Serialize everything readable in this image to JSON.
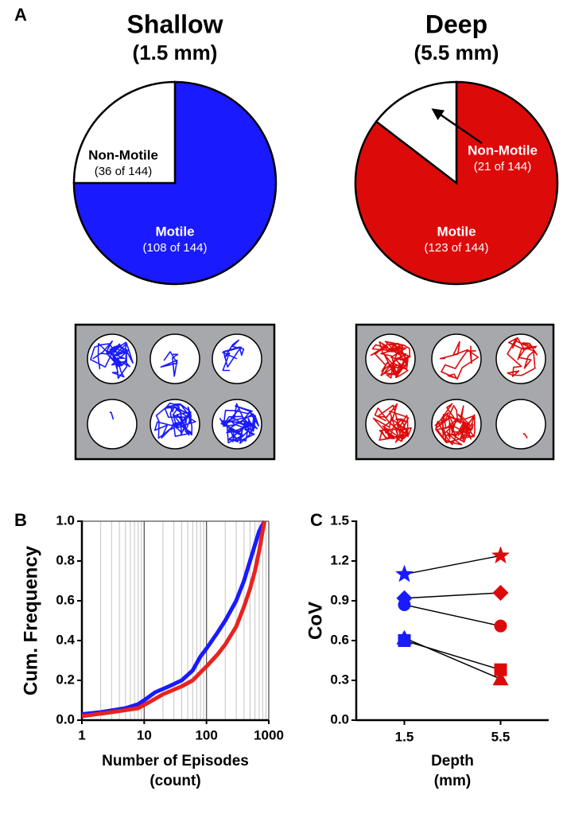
{
  "chart_data": [
    {
      "type": "pie",
      "panel": "A",
      "title": "Shallow",
      "subtitle": "(1.5 mm)",
      "categories": [
        "Motile",
        "Non-Motile"
      ],
      "values": [
        108,
        36
      ],
      "value_labels": [
        "(108 of 144)",
        "(36 of 144)"
      ],
      "colors": [
        "#1a1aff",
        "#ffffff"
      ]
    },
    {
      "type": "pie",
      "title": "Deep",
      "subtitle": "(5.5 mm)",
      "categories": [
        "Motile",
        "Non-Motile"
      ],
      "values": [
        123,
        21
      ],
      "value_labels": [
        "(123 of 144)",
        "(21 of 144)"
      ],
      "colors": [
        "#dd0a0a",
        "#ffffff"
      ]
    },
    {
      "type": "line",
      "panel": "B",
      "ylabel": "Cum. Frequency",
      "xlabel": "Number of Episodes",
      "xunit": "(count)",
      "xscale": "log",
      "xlim": [
        1,
        1000
      ],
      "xticks": [
        1,
        10,
        100,
        1000
      ],
      "ylim": [
        0,
        1
      ],
      "yticks": [
        {
          "value": 0,
          "label": "0.0"
        },
        {
          "value": 0.2,
          "label": "0.2"
        },
        {
          "value": 0.4,
          "label": "0.4"
        },
        {
          "value": 0.6,
          "label": "0.6"
        },
        {
          "value": 0.8,
          "label": "0.8"
        },
        {
          "value": 1,
          "label": "1.0"
        }
      ],
      "grid": "x",
      "series": [
        {
          "color": "#1a1aff",
          "x": [
            1,
            2,
            5,
            8,
            10,
            15,
            25,
            40,
            60,
            80,
            100,
            150,
            200,
            300,
            400,
            500,
            700,
            850
          ],
          "values": [
            0.03,
            0.04,
            0.06,
            0.08,
            0.1,
            0.14,
            0.17,
            0.2,
            0.25,
            0.32,
            0.36,
            0.44,
            0.5,
            0.6,
            0.7,
            0.8,
            0.95,
            1
          ]
        },
        {
          "color": "#e8231f",
          "x": [
            1,
            3,
            8,
            12,
            20,
            40,
            60,
            80,
            100,
            150,
            200,
            300,
            400,
            500,
            600,
            700,
            850
          ],
          "values": [
            0.02,
            0.04,
            0.06,
            0.09,
            0.13,
            0.17,
            0.2,
            0.24,
            0.27,
            0.33,
            0.38,
            0.47,
            0.57,
            0.66,
            0.75,
            0.85,
            1
          ]
        }
      ]
    },
    {
      "type": "line",
      "panel": "C",
      "ylabel": "CoV",
      "xlabel": "Depth",
      "xunit": "(mm)",
      "categories": [
        "1.5",
        "5.5"
      ],
      "ylim": [
        0,
        1.5
      ],
      "yticks": [
        {
          "value": 0,
          "label": "0.0"
        },
        {
          "value": 0.3,
          "label": "0.3"
        },
        {
          "value": 0.6,
          "label": "0.6"
        },
        {
          "value": 0.9,
          "label": "0.9"
        },
        {
          "value": 1.2,
          "label": "1.2"
        },
        {
          "value": 1.5,
          "label": "1.5"
        }
      ],
      "point_colors": [
        "#1a1aff",
        "#dd0a0a"
      ],
      "line_color": "#000000",
      "series": [
        {
          "marker": "star",
          "values": [
            1.1,
            1.24
          ]
        },
        {
          "marker": "diamond",
          "values": [
            0.92,
            0.96
          ]
        },
        {
          "marker": "circle",
          "values": [
            0.87,
            0.71
          ]
        },
        {
          "marker": "square",
          "values": [
            0.6,
            0.38
          ]
        },
        {
          "marker": "triangle",
          "values": [
            0.62,
            0.31
          ]
        }
      ]
    }
  ]
}
